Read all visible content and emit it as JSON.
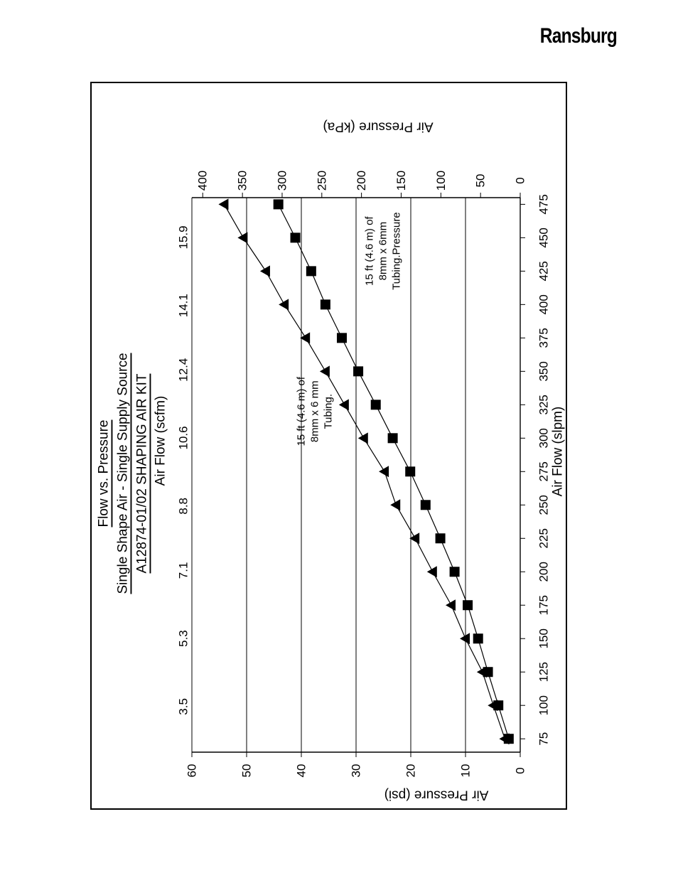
{
  "header": {
    "brand": "Ransburg"
  },
  "chart_data": {
    "type": "line",
    "orientation": "rotated-90-ccw",
    "title_lines": [
      "Flow vs. Pressure",
      "Single Shape Air - Single Supply Source",
      "A12874-01/02 SHAPING AIR KIT"
    ],
    "xlabel": "Air Flow (slpm)",
    "x2label": "Air Flow (scfm)",
    "ylabel": "Air Pressure (psi)",
    "y2label": "Air Pressure (kPa)",
    "xlim": [
      65,
      480
    ],
    "ylim": [
      0,
      60
    ],
    "xticks": [
      75,
      100,
      125,
      150,
      175,
      200,
      225,
      250,
      275,
      300,
      325,
      350,
      375,
      400,
      425,
      450,
      475
    ],
    "yticks": [
      0,
      10,
      20,
      30,
      40,
      50,
      60
    ],
    "x2_tick_labels": [
      {
        "label": "3.5",
        "x": 99.1
      },
      {
        "label": "5.3",
        "x": 150.1
      },
      {
        "label": "7.1",
        "x": 201.0
      },
      {
        "label": "8.8",
        "x": 249.2
      },
      {
        "label": "10.6",
        "x": 300.2
      },
      {
        "label": "12.4",
        "x": 351.1
      },
      {
        "label": "14.1",
        "x": 399.3
      },
      {
        "label": "15.9",
        "x": 450.2
      }
    ],
    "y2_tick_labels": [
      {
        "label": "0",
        "y": 0
      },
      {
        "label": "50",
        "y": 7.25
      },
      {
        "label": "100",
        "y": 14.5
      },
      {
        "label": "150",
        "y": 21.76
      },
      {
        "label": "200",
        "y": 29.01
      },
      {
        "label": "250",
        "y": 36.26
      },
      {
        "label": "300",
        "y": 43.51
      },
      {
        "label": "350",
        "y": 50.76
      },
      {
        "label": "400",
        "y": 58.02
      }
    ],
    "grid": "horizontal-y-lines",
    "series": [
      {
        "name": "15 ft (4.6 m) of 8mm x 6 mm Tubing.",
        "marker": "triangle",
        "x": [
          75,
          100,
          125,
          150,
          175,
          200,
          225,
          250,
          275,
          300,
          325,
          350,
          375,
          400,
          425,
          450,
          475
        ],
        "y": [
          2.8,
          4.9,
          6.9,
          10.0,
          12.6,
          16.0,
          19.2,
          22.7,
          24.8,
          28.6,
          32.1,
          35.6,
          39.2,
          43.1,
          46.5,
          50.6,
          54.1
        ]
      },
      {
        "name": "15 ft (4.6 m) of 8mm x 6mm Tubing.Pressure",
        "marker": "square",
        "x": [
          75,
          100,
          125,
          150,
          175,
          200,
          225,
          250,
          275,
          300,
          325,
          350,
          375,
          400,
          425,
          450,
          475
        ],
        "y": [
          2.1,
          4.0,
          5.9,
          7.7,
          9.6,
          12.0,
          14.6,
          17.3,
          20.1,
          23.3,
          26.4,
          29.6,
          32.6,
          35.6,
          38.2,
          41.1,
          44.2
        ]
      }
    ],
    "annotations": [
      {
        "lines": [
          "15 ft (4.6 m) of",
          "8mm x 6 mm",
          "Tubing."
        ],
        "x": 320,
        "y": 40
      },
      {
        "lines": [
          "15 ft (4.6 m) of",
          "8mm x 6mm",
          "Tubing.Pressure"
        ],
        "x": 440,
        "y": 27.5
      }
    ]
  }
}
